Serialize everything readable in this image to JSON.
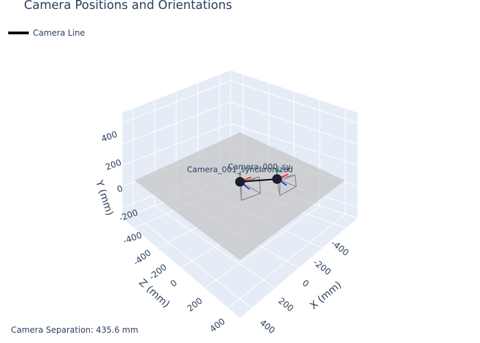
{
  "title": "Camera Positions and Orientations",
  "legend": {
    "label": "Camera Line",
    "color": "#000000"
  },
  "annotation": "Camera Separation: 435.6 mm",
  "chart_data": {
    "type": "scatter3d",
    "title": "Camera Positions and Orientations",
    "axes": {
      "x": {
        "label": "X (mm)",
        "range": [
          -500,
          500
        ],
        "ticks": [
          -400,
          -200,
          0,
          200,
          400
        ]
      },
      "y": {
        "label": "Y (mm)",
        "range": [
          -500,
          500
        ],
        "ticks": [
          -400,
          -200,
          0,
          200,
          400
        ]
      },
      "z": {
        "label": "Z (mm)",
        "range": [
          -500,
          500
        ],
        "ticks": [
          -400,
          -200,
          0,
          200,
          400
        ]
      }
    },
    "cameras": [
      {
        "name": "Camera_000_sy",
        "position": [
          -218,
          0,
          0
        ]
      },
      {
        "name": "Camera_001_synchronized",
        "position": [
          218,
          0,
          0
        ]
      }
    ],
    "series": [
      {
        "name": "Camera Line",
        "type": "line",
        "color": "#000000",
        "x": [
          -218,
          218
        ],
        "y": [
          0,
          0
        ],
        "z": [
          0,
          0
        ]
      }
    ],
    "orientation_axes_colors": {
      "x": "#ff0000",
      "y": "#00aa00",
      "z": "#0000ff"
    },
    "ground_plane": {
      "y": 0,
      "color": "#c8c8c8"
    },
    "grid": true,
    "legend_position": "top-left"
  }
}
